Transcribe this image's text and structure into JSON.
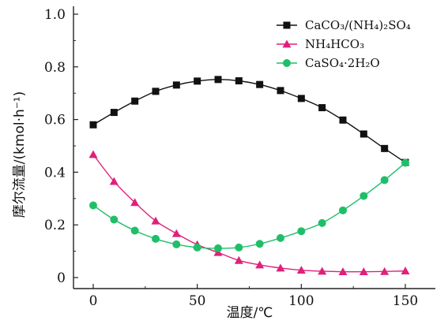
{
  "chart_data": {
    "type": "line",
    "title": "",
    "xlabel": "温度/℃",
    "ylabel": "摩尔流量/(kmol·h⁻¹)",
    "xlim": [
      -5,
      160
    ],
    "ylim": [
      0,
      1.04
    ],
    "x_ticks": [
      0,
      50,
      100,
      150
    ],
    "y_ticks": [
      0,
      0.2,
      0.4,
      0.6,
      0.8,
      1.0
    ],
    "x_tick_labels": [
      "0",
      "50",
      "100",
      "150"
    ],
    "y_tick_labels": [
      "0",
      "0.2",
      "0.4",
      "0.6",
      "0.8",
      "1.0"
    ],
    "grid": false,
    "legend_position": "top-right",
    "series": [
      {
        "name": "CaCO₃/(NH₄)₂SO₄",
        "color": "#111111",
        "marker": "square",
        "x": [
          0,
          10,
          20,
          30,
          40,
          50,
          60,
          70,
          80,
          90,
          100,
          110,
          120,
          130,
          140,
          150
        ],
        "y": [
          0.58,
          0.627,
          0.67,
          0.707,
          0.731,
          0.746,
          0.752,
          0.747,
          0.733,
          0.71,
          0.68,
          0.645,
          0.598,
          0.545,
          0.49,
          0.437
        ]
      },
      {
        "name": "NH₄HCO₃",
        "color": "#e0207a",
        "marker": "triangle",
        "x": [
          0,
          10,
          20,
          30,
          40,
          50,
          60,
          70,
          80,
          90,
          100,
          110,
          120,
          130,
          140,
          150
        ],
        "y": [
          0.467,
          0.365,
          0.285,
          0.215,
          0.167,
          0.125,
          0.095,
          0.065,
          0.048,
          0.036,
          0.028,
          0.024,
          0.022,
          0.022,
          0.023,
          0.025
        ]
      },
      {
        "name": "CaSO₄·2H₂O",
        "color": "#1fbf6a",
        "marker": "circle",
        "x": [
          0,
          10,
          20,
          30,
          40,
          50,
          60,
          70,
          80,
          90,
          100,
          110,
          120,
          130,
          140,
          150
        ],
        "y": [
          0.274,
          0.22,
          0.178,
          0.147,
          0.126,
          0.114,
          0.111,
          0.114,
          0.128,
          0.15,
          0.176,
          0.207,
          0.255,
          0.31,
          0.37,
          0.436
        ]
      }
    ]
  }
}
